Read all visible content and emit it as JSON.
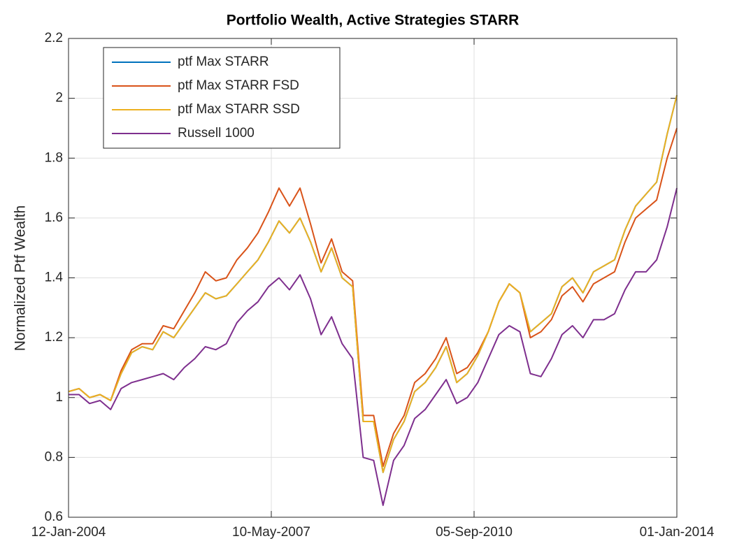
{
  "chart_data": {
    "type": "line",
    "title": "Portfolio Wealth, Active Strategies STARR",
    "y_label": "Normalized Ptf Wealth",
    "x": [
      "12-Jan-2004",
      "15-Mar-2004",
      "17-May-2004",
      "19-Jul-2004",
      "20-Sep-2004",
      "22-Nov-2004",
      "24-Jan-2005",
      "28-Mar-2005",
      "30-May-2005",
      "01-Aug-2005",
      "03-Oct-2005",
      "05-Dec-2005",
      "06-Feb-2006",
      "10-Apr-2006",
      "12-Jun-2006",
      "14-Aug-2006",
      "16-Oct-2006",
      "18-Dec-2006",
      "19-Feb-2007",
      "23-Apr-2007",
      "25-Jun-2007",
      "27-Aug-2007",
      "29-Oct-2007",
      "31-Dec-2007",
      "03-Mar-2008",
      "05-May-2008",
      "07-Jul-2008",
      "08-Sep-2008",
      "10-Nov-2008",
      "12-Jan-2009",
      "09-Mar-2009",
      "11-May-2009",
      "13-Jul-2009",
      "14-Sep-2009",
      "16-Nov-2009",
      "18-Jan-2010",
      "22-Mar-2010",
      "24-May-2010",
      "26-Jul-2010",
      "27-Sep-2010",
      "29-Nov-2010",
      "31-Jan-2011",
      "04-Apr-2011",
      "06-Jun-2011",
      "08-Aug-2011",
      "10-Oct-2011",
      "12-Dec-2011",
      "13-Feb-2012",
      "16-Apr-2012",
      "18-Jun-2012",
      "20-Aug-2012",
      "22-Oct-2012",
      "24-Dec-2012",
      "25-Feb-2013",
      "29-Apr-2013",
      "01-Jul-2013",
      "02-Sep-2013",
      "04-Nov-2013",
      "01-Jan-2014"
    ],
    "series": [
      {
        "name": "ptf Max STARR",
        "color": "#0072BD",
        "values": [
          1.02,
          1.03,
          1.0,
          1.01,
          0.99,
          1.08,
          1.15,
          1.17,
          1.16,
          1.22,
          1.2,
          1.25,
          1.3,
          1.35,
          1.33,
          1.34,
          1.38,
          1.42,
          1.46,
          1.52,
          1.59,
          1.55,
          1.6,
          1.52,
          1.42,
          1.5,
          1.4,
          1.37,
          0.92,
          0.92,
          0.75,
          0.86,
          0.92,
          1.02,
          1.05,
          1.1,
          1.17,
          1.05,
          1.08,
          1.14,
          1.22,
          1.32,
          1.38,
          1.35,
          1.22,
          1.25,
          1.28,
          1.37,
          1.4,
          1.35,
          1.42,
          1.44,
          1.46,
          1.56,
          1.64,
          1.68,
          1.72,
          1.88,
          2.01
        ]
      },
      {
        "name": "ptf Max STARR FSD",
        "color": "#D95319",
        "values": [
          1.02,
          1.03,
          1.0,
          1.01,
          0.99,
          1.09,
          1.16,
          1.18,
          1.18,
          1.24,
          1.23,
          1.29,
          1.35,
          1.42,
          1.39,
          1.4,
          1.46,
          1.5,
          1.55,
          1.62,
          1.7,
          1.64,
          1.7,
          1.58,
          1.45,
          1.53,
          1.42,
          1.39,
          0.94,
          0.94,
          0.77,
          0.88,
          0.94,
          1.05,
          1.08,
          1.13,
          1.2,
          1.08,
          1.1,
          1.15,
          1.22,
          1.32,
          1.38,
          1.35,
          1.2,
          1.22,
          1.26,
          1.34,
          1.37,
          1.32,
          1.38,
          1.4,
          1.42,
          1.52,
          1.6,
          1.63,
          1.66,
          1.8,
          1.9
        ]
      },
      {
        "name": "ptf Max STARR SSD",
        "color": "#EDB120",
        "values": [
          1.02,
          1.03,
          1.0,
          1.01,
          0.99,
          1.08,
          1.15,
          1.17,
          1.16,
          1.22,
          1.2,
          1.25,
          1.3,
          1.35,
          1.33,
          1.34,
          1.38,
          1.42,
          1.46,
          1.52,
          1.59,
          1.55,
          1.6,
          1.52,
          1.42,
          1.5,
          1.4,
          1.37,
          0.92,
          0.92,
          0.75,
          0.86,
          0.92,
          1.02,
          1.05,
          1.1,
          1.17,
          1.05,
          1.08,
          1.14,
          1.22,
          1.32,
          1.38,
          1.35,
          1.22,
          1.25,
          1.28,
          1.37,
          1.4,
          1.35,
          1.42,
          1.44,
          1.46,
          1.56,
          1.64,
          1.68,
          1.72,
          1.88,
          2.01
        ]
      },
      {
        "name": "Russell 1000",
        "color": "#7E2F8E",
        "values": [
          1.01,
          1.01,
          0.98,
          0.99,
          0.96,
          1.03,
          1.05,
          1.06,
          1.07,
          1.08,
          1.06,
          1.1,
          1.13,
          1.17,
          1.16,
          1.18,
          1.25,
          1.29,
          1.32,
          1.37,
          1.4,
          1.36,
          1.41,
          1.33,
          1.21,
          1.27,
          1.18,
          1.13,
          0.8,
          0.79,
          0.64,
          0.79,
          0.84,
          0.93,
          0.96,
          1.01,
          1.06,
          0.98,
          1.0,
          1.05,
          1.13,
          1.21,
          1.24,
          1.22,
          1.08,
          1.07,
          1.13,
          1.21,
          1.24,
          1.2,
          1.26,
          1.26,
          1.28,
          1.36,
          1.42,
          1.42,
          1.46,
          1.57,
          1.7
        ]
      }
    ],
    "xlim": [
      "12-Jan-2004",
      "01-Jan-2014"
    ],
    "xticks": [
      "12-Jan-2004",
      "10-May-2007",
      "05-Sep-2010",
      "01-Jan-2014"
    ],
    "ylim": [
      0.6,
      2.2
    ],
    "yticks": [
      0.6,
      0.8,
      1,
      1.2,
      1.4,
      1.6,
      1.8,
      2,
      2.2
    ],
    "grid": true,
    "legend": "top-left"
  }
}
